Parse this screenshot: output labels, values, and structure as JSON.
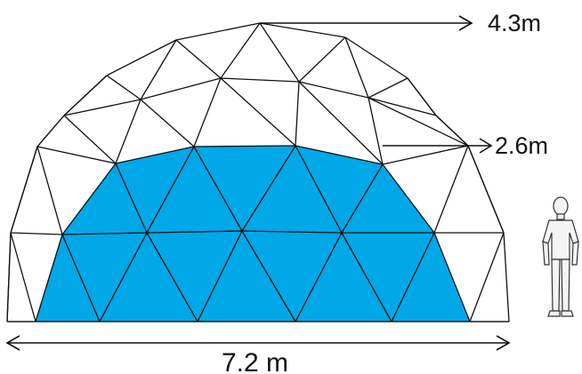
{
  "dimensions": {
    "top_height": "4.3m",
    "panel_height": "2.6m",
    "base_width": "7.2 m"
  },
  "colors": {
    "panel_fill": "#00a8e8",
    "frame_stroke": "#111111",
    "background": "#ffffff"
  },
  "icons": {
    "person": "standing-person-figure"
  }
}
